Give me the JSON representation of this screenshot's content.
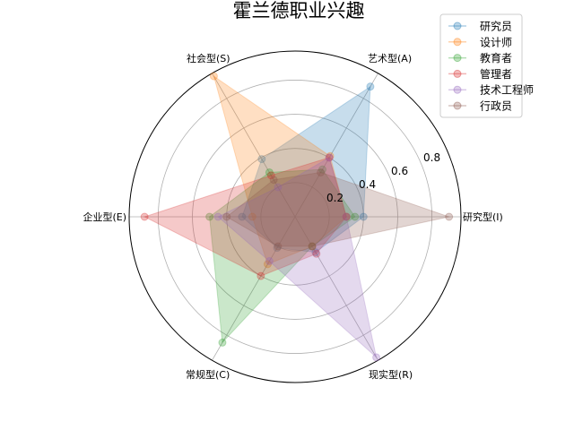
{
  "chart_data": {
    "type": "radar",
    "title": "霍兰德职业兴趣",
    "axes": [
      "现实型(R)",
      "研究型(I)",
      "艺术型(A)",
      "社会型(S)",
      "企业型(E)",
      "常规型(C)"
    ],
    "radial_ticks": [
      "0.2",
      "0.4",
      "0.6",
      "0.8"
    ],
    "rmax": 0.97,
    "grid": true,
    "legend_position": "top-right",
    "series": [
      {
        "name": "研究员",
        "color": "#1f77b4",
        "values": [
          0.24,
          0.4,
          0.88,
          0.39,
          0.31,
          0.21
        ]
      },
      {
        "name": "设计师",
        "color": "#ff7f0e",
        "values": [
          0.2,
          0.3,
          0.41,
          0.95,
          0.25,
          0.32
        ]
      },
      {
        "name": "教育者",
        "color": "#2ca02c",
        "values": [
          0.2,
          0.35,
          0.32,
          0.3,
          0.5,
          0.85
        ]
      },
      {
        "name": "管理者",
        "color": "#d62728",
        "values": [
          0.25,
          0.3,
          0.4,
          0.28,
          0.88,
          0.4
        ]
      },
      {
        "name": "技术工程师",
        "color": "#9467bd",
        "values": [
          0.95,
          0.3,
          0.4,
          0.2,
          0.45,
          0.3
        ]
      },
      {
        "name": "行政员",
        "color": "#8c564b",
        "values": [
          0.2,
          0.9,
          0.3,
          0.25,
          0.4,
          0.2
        ]
      }
    ]
  }
}
